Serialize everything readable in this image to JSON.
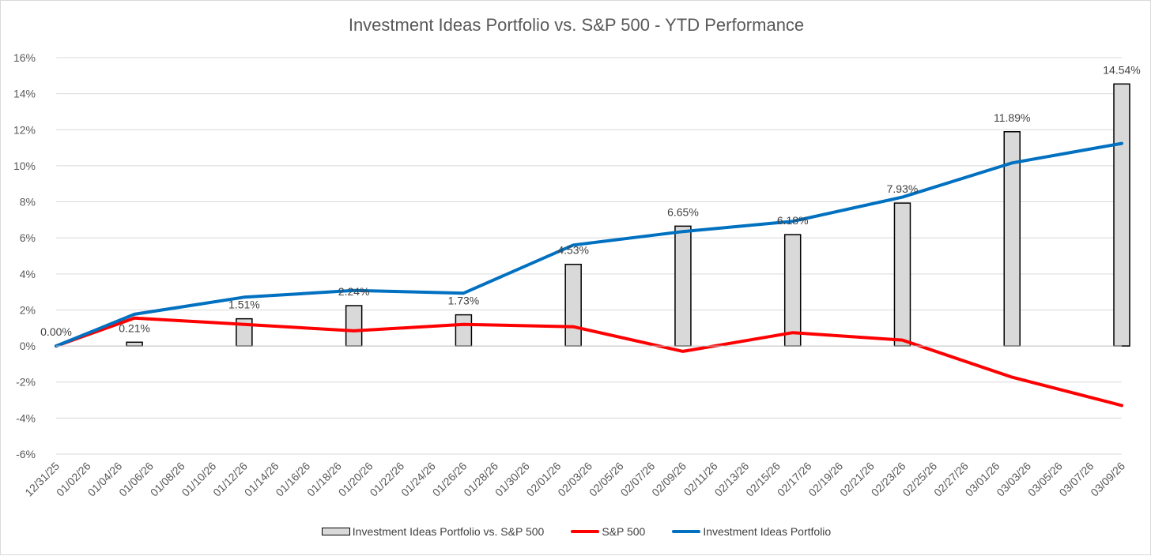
{
  "chart_data": {
    "type": "bar+line",
    "title": "Investment Ideas Portfolio vs. S&P 500 - YTD Performance",
    "ylim": [
      -6,
      16
    ],
    "ystep": 2,
    "y_tick_labels": [
      "-6%",
      "-4%",
      "-2%",
      "0%",
      "2%",
      "4%",
      "6%",
      "8%",
      "10%",
      "12%",
      "14%",
      "16%"
    ],
    "x_tick_labels": [
      "12/31/25",
      "01/02/26",
      "01/04/26",
      "01/06/26",
      "01/08/26",
      "01/10/26",
      "01/12/26",
      "01/14/26",
      "01/16/26",
      "01/18/26",
      "01/20/26",
      "01/22/26",
      "01/24/26",
      "01/26/26",
      "01/28/26",
      "01/30/26",
      "02/01/26",
      "02/03/26",
      "02/05/26",
      "02/07/26",
      "02/09/26",
      "02/11/26",
      "02/13/26",
      "02/15/26",
      "02/17/26",
      "02/19/26",
      "02/21/26",
      "02/23/26",
      "02/25/26",
      "02/27/26",
      "03/01/26",
      "03/03/26",
      "03/05/26",
      "03/07/26",
      "03/09/26"
    ],
    "x_start": "12/31/25",
    "x_end": "03/09/26",
    "total_days": 68,
    "points": [
      {
        "date": "12/31/25",
        "day": 0,
        "diff": 0.0,
        "diff_label": "0.00%",
        "sp500": 0.0,
        "portfolio": 0.0
      },
      {
        "date": "01/05/26",
        "day": 5,
        "diff": 0.21,
        "diff_label": "0.21%",
        "sp500": 1.55,
        "portfolio": 1.76
      },
      {
        "date": "01/12/26",
        "day": 12,
        "diff": 1.51,
        "diff_label": "1.51%",
        "sp500": 1.2,
        "portfolio": 2.71
      },
      {
        "date": "01/19/26",
        "day": 19,
        "diff": 2.24,
        "diff_label": "2.24%",
        "sp500": 0.84,
        "portfolio": 3.08
      },
      {
        "date": "01/26/26",
        "day": 26,
        "diff": 1.73,
        "diff_label": "1.73%",
        "sp500": 1.2,
        "portfolio": 2.93
      },
      {
        "date": "02/02/26",
        "day": 33,
        "diff": 4.53,
        "diff_label": "4.53%",
        "sp500": 1.07,
        "portfolio": 5.6
      },
      {
        "date": "02/09/26",
        "day": 40,
        "diff": 6.65,
        "diff_label": "6.65%",
        "sp500": -0.3,
        "portfolio": 6.35
      },
      {
        "date": "02/16/26",
        "day": 47,
        "diff": 6.18,
        "diff_label": "6.18%",
        "sp500": 0.74,
        "portfolio": 6.92
      },
      {
        "date": "02/23/26",
        "day": 54,
        "diff": 7.93,
        "diff_label": "7.93%",
        "sp500": 0.33,
        "portfolio": 8.26
      },
      {
        "date": "03/02/26",
        "day": 61,
        "diff": 11.89,
        "diff_label": "11.89%",
        "sp500": -1.73,
        "portfolio": 10.16
      },
      {
        "date": "03/09/26",
        "day": 68,
        "diff": 14.54,
        "diff_label": "14.54%",
        "sp500": -3.3,
        "portfolio": 11.24
      }
    ],
    "series": [
      {
        "name": "Investment Ideas Portfolio vs. S&P 500",
        "kind": "bar",
        "color": "#d9d9d9",
        "edge": "#000000"
      },
      {
        "name": "S&P 500",
        "kind": "line",
        "color": "#ff0000"
      },
      {
        "name": "Investment Ideas Portfolio",
        "kind": "line",
        "color": "#0070c0"
      }
    ],
    "legend_position": "bottom",
    "grid": true
  }
}
